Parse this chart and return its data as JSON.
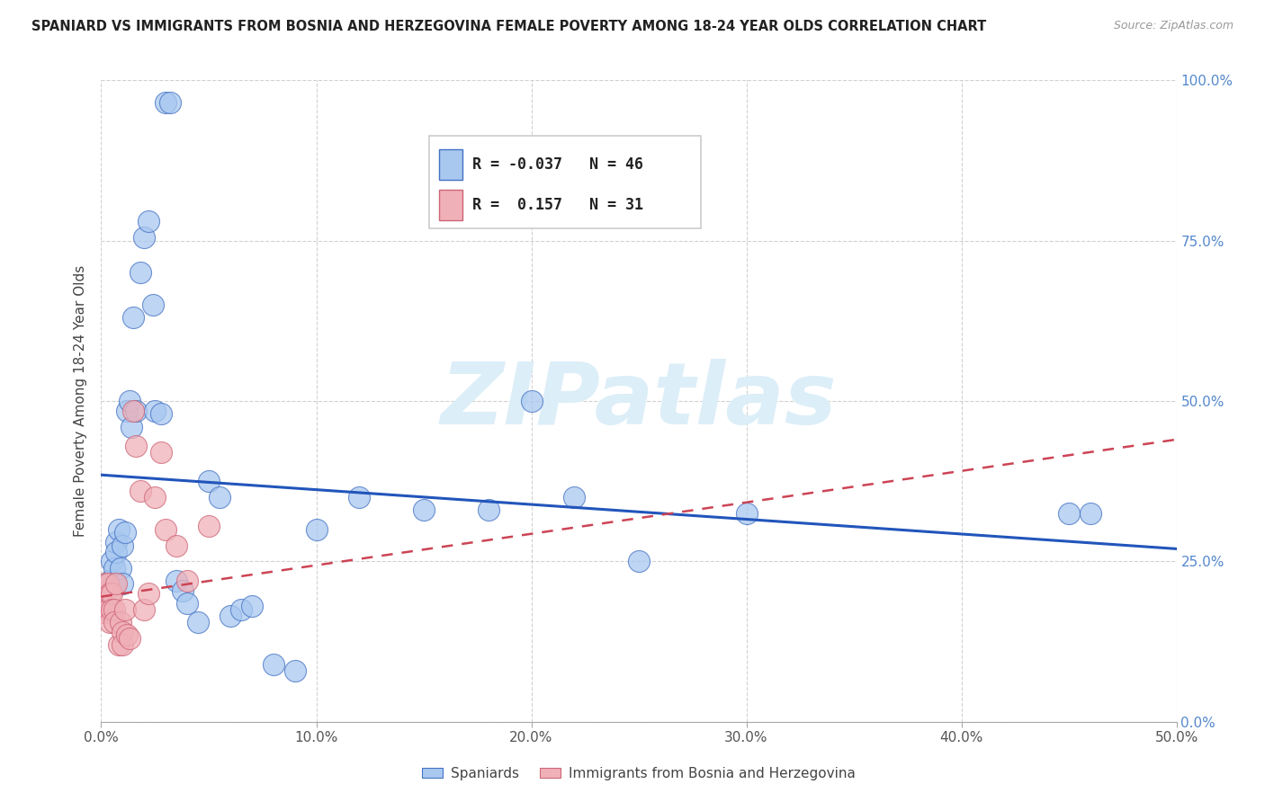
{
  "title": "SPANIARD VS IMMIGRANTS FROM BOSNIA AND HERZEGOVINA FEMALE POVERTY AMONG 18-24 YEAR OLDS CORRELATION CHART",
  "source": "Source: ZipAtlas.com",
  "ylabel": "Female Poverty Among 18-24 Year Olds",
  "xlim": [
    0.0,
    0.5
  ],
  "ylim": [
    0.0,
    1.0
  ],
  "xticks": [
    0.0,
    0.1,
    0.2,
    0.3,
    0.4,
    0.5
  ],
  "yticks": [
    0.0,
    0.25,
    0.5,
    0.75,
    1.0
  ],
  "xticklabels": [
    "0.0%",
    "10.0%",
    "20.0%",
    "30.0%",
    "40.0%",
    "50.0%"
  ],
  "right_yticklabels": [
    "0.0%",
    "25.0%",
    "50.0%",
    "75.0%",
    "100.0%"
  ],
  "legend_R1": "-0.037",
  "legend_N1": "46",
  "legend_R2": " 0.157",
  "legend_N2": "31",
  "legend_label1": "Spaniards",
  "legend_label2": "Immigrants from Bosnia and Herzegovina",
  "color_blue": "#a8c8f0",
  "color_pink": "#f0b0b8",
  "edge_blue": "#4472c4",
  "edge_pink": "#cc6677",
  "trend_blue_color": "#2255bb",
  "trend_pink_color": "#cc4455",
  "watermark": "ZIPatlas",
  "watermark_color": "#dceef8",
  "background": "#ffffff",
  "spaniards_x": [
    0.003,
    0.004,
    0.005,
    0.006,
    0.006,
    0.007,
    0.007,
    0.008,
    0.009,
    0.01,
    0.01,
    0.011,
    0.012,
    0.013,
    0.014,
    0.015,
    0.016,
    0.018,
    0.02,
    0.022,
    0.024,
    0.025,
    0.028,
    0.03,
    0.032,
    0.035,
    0.038,
    0.04,
    0.045,
    0.05,
    0.055,
    0.06,
    0.065,
    0.07,
    0.08,
    0.09,
    0.1,
    0.12,
    0.15,
    0.18,
    0.2,
    0.22,
    0.25,
    0.3,
    0.45,
    0.46
  ],
  "spaniards_y": [
    0.215,
    0.22,
    0.25,
    0.24,
    0.215,
    0.28,
    0.265,
    0.3,
    0.24,
    0.275,
    0.215,
    0.295,
    0.485,
    0.5,
    0.46,
    0.63,
    0.485,
    0.7,
    0.755,
    0.78,
    0.65,
    0.485,
    0.48,
    0.965,
    0.965,
    0.22,
    0.205,
    0.185,
    0.155,
    0.375,
    0.35,
    0.165,
    0.175,
    0.18,
    0.09,
    0.08,
    0.3,
    0.35,
    0.33,
    0.33,
    0.5,
    0.35,
    0.25,
    0.325,
    0.325,
    0.325
  ],
  "bosnia_x": [
    0.001,
    0.001,
    0.002,
    0.002,
    0.003,
    0.003,
    0.004,
    0.004,
    0.005,
    0.005,
    0.006,
    0.006,
    0.007,
    0.008,
    0.009,
    0.01,
    0.01,
    0.011,
    0.012,
    0.013,
    0.015,
    0.016,
    0.018,
    0.02,
    0.022,
    0.025,
    0.028,
    0.03,
    0.035,
    0.04,
    0.05
  ],
  "bosnia_y": [
    0.2,
    0.17,
    0.215,
    0.18,
    0.215,
    0.175,
    0.155,
    0.2,
    0.2,
    0.175,
    0.175,
    0.155,
    0.215,
    0.12,
    0.155,
    0.14,
    0.12,
    0.175,
    0.135,
    0.13,
    0.485,
    0.43,
    0.36,
    0.175,
    0.2,
    0.35,
    0.42,
    0.3,
    0.275,
    0.22,
    0.305
  ]
}
